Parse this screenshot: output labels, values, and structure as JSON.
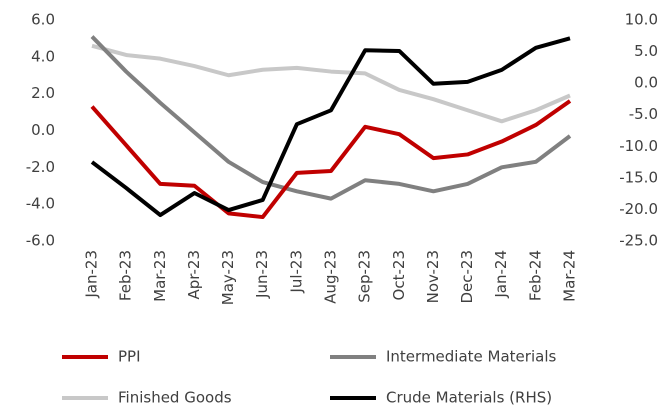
{
  "chart_data": {
    "type": "line",
    "categories": [
      "Jan-23",
      "Feb-23",
      "Mar-23",
      "Apr-23",
      "May-23",
      "Jun-23",
      "Jul-23",
      "Aug-23",
      "Sep-23",
      "Oct-23",
      "Nov-23",
      "Dec-23",
      "Jan-24",
      "Feb-24",
      "Mar-24"
    ],
    "series": [
      {
        "name": "PPI",
        "color": "#c00000",
        "values": [
          1.3,
          -0.8,
          -2.9,
          -3.0,
          -4.5,
          -4.7,
          -2.3,
          -2.2,
          0.2,
          -0.2,
          -1.5,
          -1.3,
          -0.6,
          0.3,
          1.6
        ]
      },
      {
        "name": "Intermediate Materials",
        "color": "#808080",
        "values": [
          5.1,
          3.2,
          1.5,
          -0.1,
          -1.7,
          -2.8,
          -3.3,
          -3.7,
          -2.7,
          -2.9,
          -3.3,
          -2.9,
          -2.0,
          -1.7,
          -0.3
        ]
      },
      {
        "name": "Finished Goods",
        "color": "#c8c8c8",
        "values": [
          4.6,
          4.1,
          3.9,
          3.5,
          3.0,
          3.3,
          3.4,
          3.2,
          3.1,
          2.2,
          1.7,
          1.1,
          0.5,
          1.1,
          1.9
        ]
      },
      {
        "name": "Crude Materials (RHS)",
        "color": "#000000",
        "axis": "y2",
        "values": [
          -12.5,
          -16.6,
          -20.9,
          -17.4,
          -20.1,
          -18.5,
          -6.5,
          -4.3,
          5.2,
          5.1,
          -0.1,
          0.2,
          2.1,
          5.6,
          7.1
        ]
      }
    ],
    "ylim": [
      -6,
      6
    ],
    "yticks": [
      {
        "value": -6,
        "label": "-6.0"
      },
      {
        "value": -4,
        "label": "-4.0"
      },
      {
        "value": -2,
        "label": "-2.0"
      },
      {
        "value": 0,
        "label": "0.0"
      },
      {
        "value": 2,
        "label": "2.0"
      },
      {
        "value": 4,
        "label": "4.0"
      },
      {
        "value": 6,
        "label": "6.0"
      }
    ],
    "y2lim": [
      -25,
      10
    ],
    "y2ticks": [
      {
        "value": -25,
        "label": "-25.0"
      },
      {
        "value": -20,
        "label": "-20.0"
      },
      {
        "value": -15,
        "label": "-15.0"
      },
      {
        "value": -10,
        "label": "-10.0"
      },
      {
        "value": -5,
        "label": "-5.0"
      },
      {
        "value": 0,
        "label": "0.0"
      },
      {
        "value": 5,
        "label": "5.0"
      },
      {
        "value": 10,
        "label": "10.0"
      }
    ],
    "grid": false
  }
}
